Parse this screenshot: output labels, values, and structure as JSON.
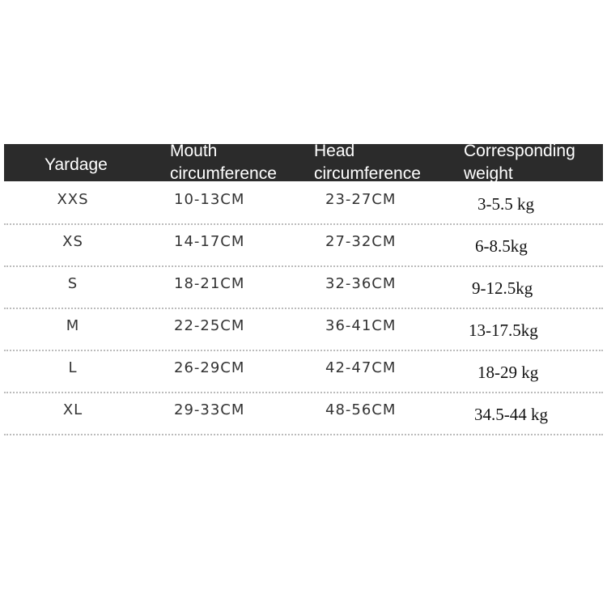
{
  "table": {
    "header": [
      "Yardage",
      "Mouth circumference",
      "Head circumference",
      "Corresponding weight"
    ],
    "rows": [
      [
        "XXS",
        "10-13CM",
        "23-27CM",
        "3-5.5 kg"
      ],
      [
        "XS",
        "14-17CM",
        "27-32CM",
        "6-8.5kg"
      ],
      [
        "S",
        "18-21CM",
        "32-36CM",
        "9-12.5kg"
      ],
      [
        "M",
        "22-25CM",
        "36-41CM",
        "13-17.5kg"
      ],
      [
        "L",
        "26-29CM",
        "42-47CM",
        "18-29 kg"
      ],
      [
        "XL",
        "29-33CM",
        "48-56CM",
        "34.5-44 kg"
      ]
    ]
  }
}
